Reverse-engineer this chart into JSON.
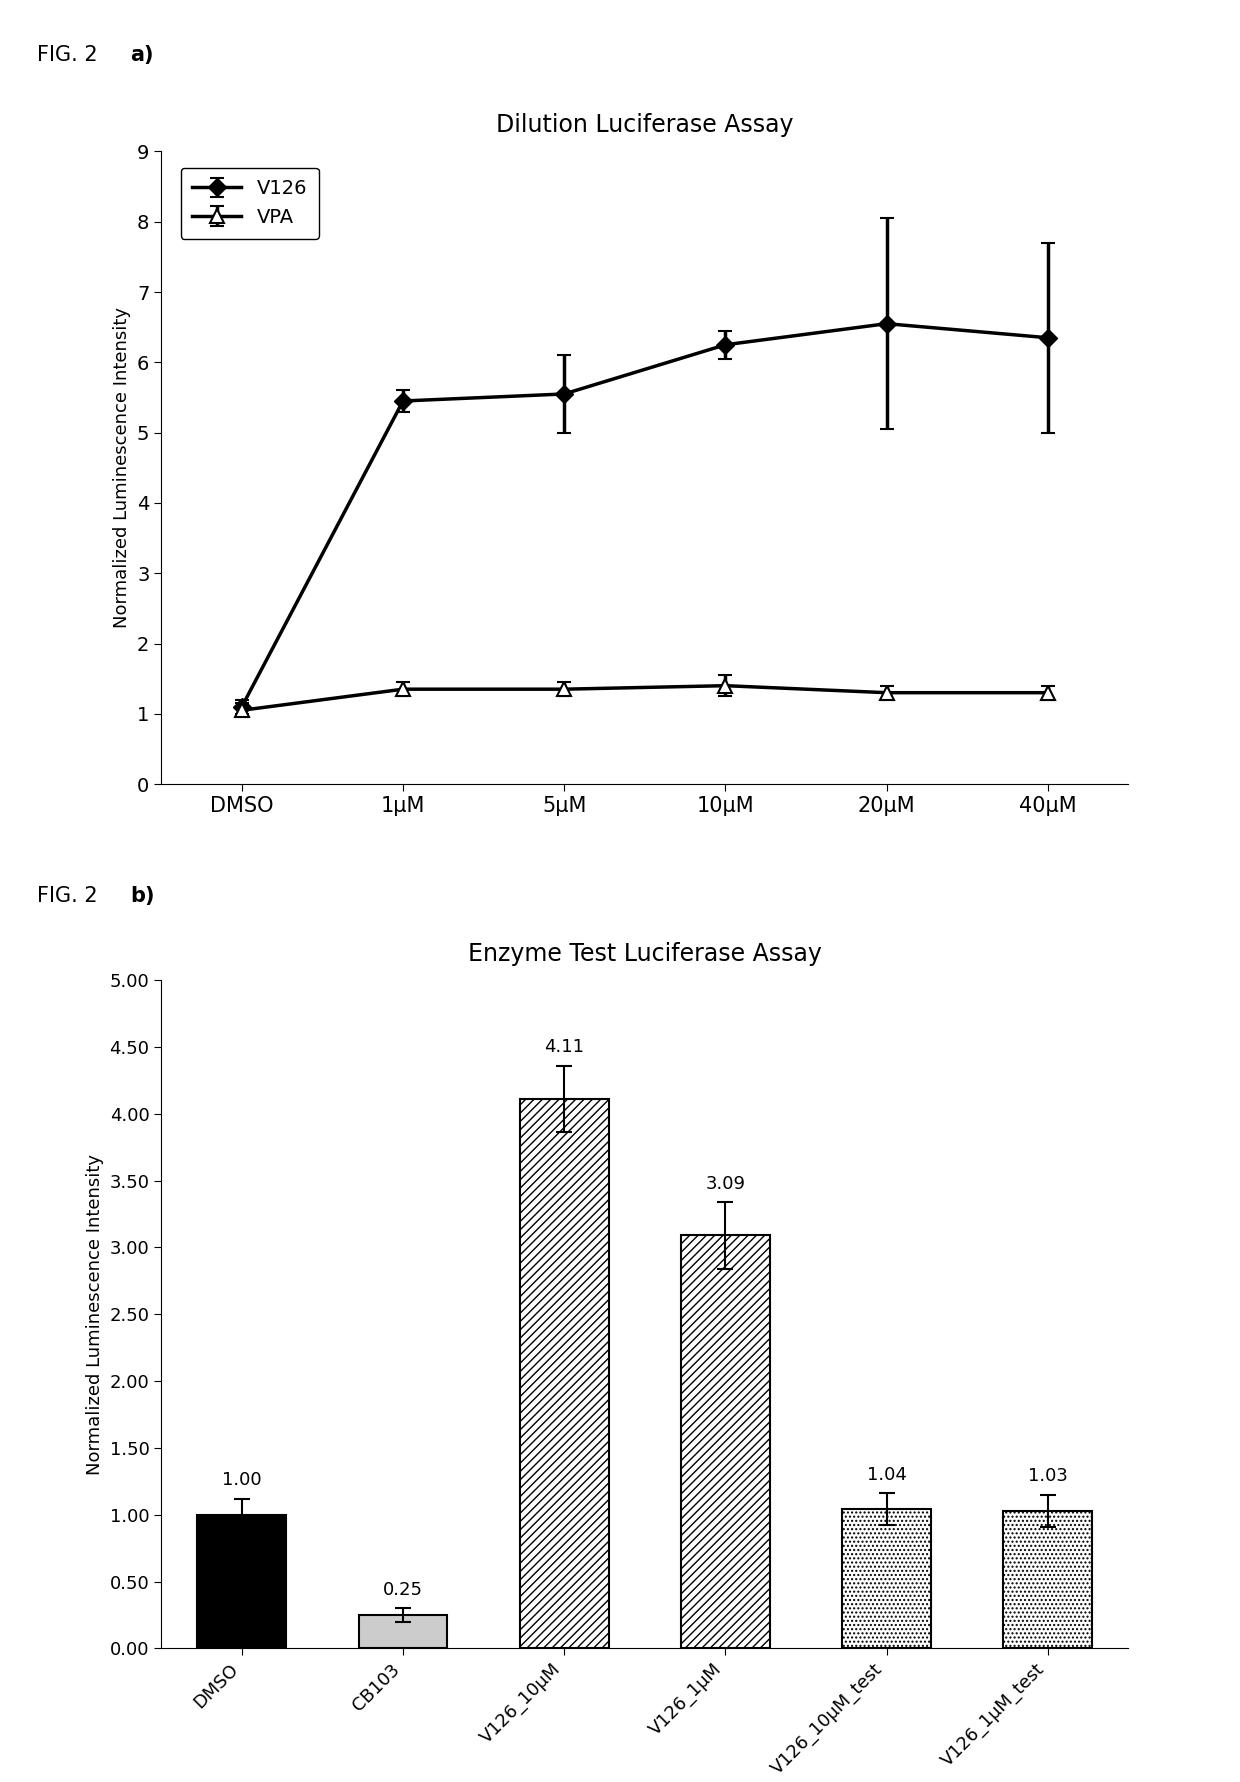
{
  "fig_a": {
    "title": "Dilution Luciferase Assay",
    "xlabel_items": [
      "DMSO",
      "1μM",
      "5μM",
      "10μM",
      "20μM",
      "40μM"
    ],
    "ylabel": "Normalized Luminescence Intensity",
    "ylim": [
      0,
      9
    ],
    "yticks": [
      0,
      1,
      2,
      3,
      4,
      5,
      6,
      7,
      8,
      9
    ],
    "v126_y": [
      1.1,
      5.45,
      5.55,
      6.25,
      6.55,
      6.35
    ],
    "v126_yerr": [
      0.1,
      0.15,
      0.55,
      0.2,
      1.5,
      1.35
    ],
    "vpa_y": [
      1.05,
      1.35,
      1.35,
      1.4,
      1.3,
      1.3
    ],
    "vpa_yerr": [
      0.1,
      0.1,
      0.1,
      0.15,
      0.1,
      0.1
    ]
  },
  "fig_b": {
    "title": "Enzyme Test Luciferase Assay",
    "categories": [
      "DMSO",
      "CB103",
      "V126_10μM",
      "V126_1μM",
      "V126_10μM_test",
      "V126_1μM_test"
    ],
    "values": [
      1.0,
      0.25,
      4.11,
      3.09,
      1.04,
      1.03
    ],
    "yerr": [
      0.12,
      0.05,
      0.25,
      0.25,
      0.12,
      0.12
    ],
    "value_labels": [
      "1.00",
      "0.25",
      "4.11",
      "3.09",
      "1.04",
      "1.03"
    ],
    "ylabel": "Normalized Luminescence Intensity",
    "ylim": [
      0,
      5.0
    ],
    "yticks": [
      0.0,
      0.5,
      1.0,
      1.5,
      2.0,
      2.5,
      3.0,
      3.5,
      4.0,
      4.5,
      5.0
    ]
  }
}
